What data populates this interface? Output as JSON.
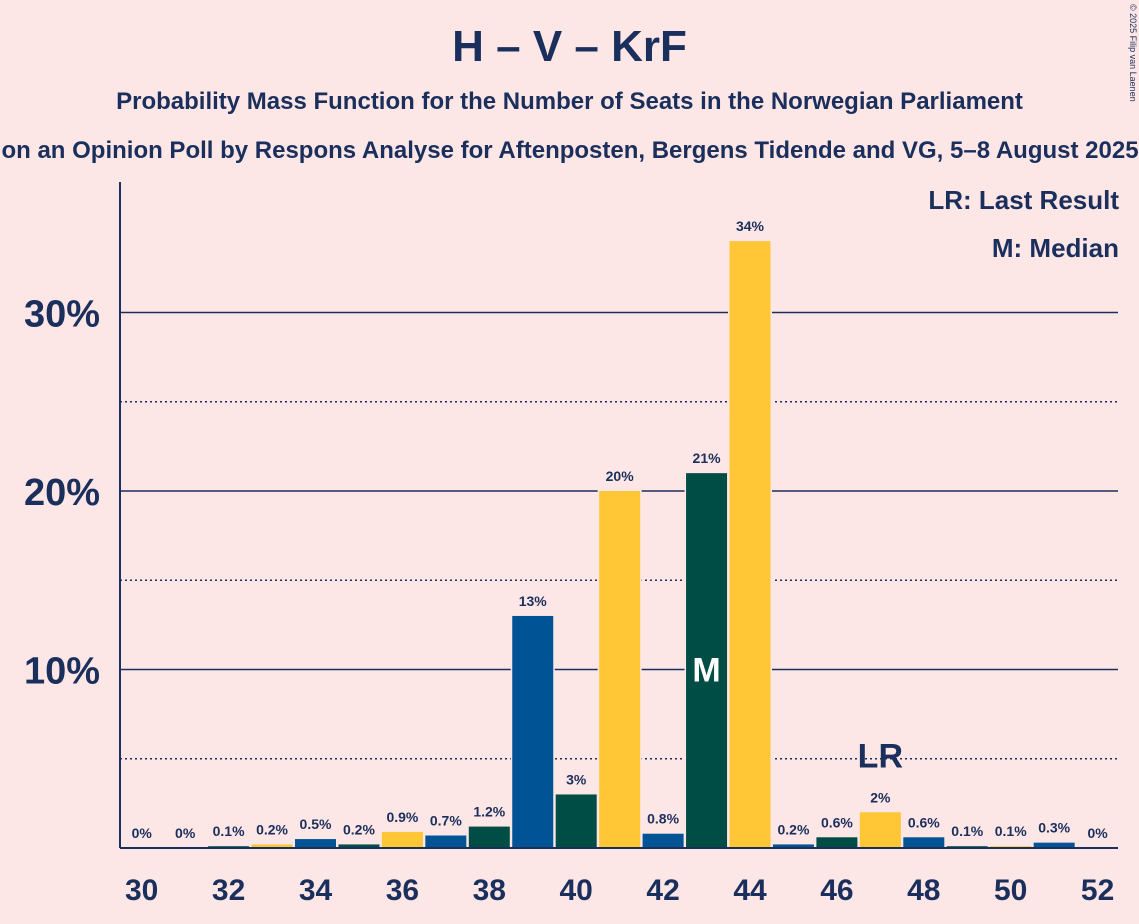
{
  "title": "H – V – KrF",
  "subtitle": "Probability Mass Function for the Number of Seats in the Norwegian Parliament",
  "subtitle2": "on an Opinion Poll by Respons Analyse for Aftenposten, Bergens Tidende and VG, 5–8 August 2025",
  "copyright": "© 2025 Filip van Laenen",
  "legend": {
    "last_result": "LR: Last Result",
    "median": "M: Median"
  },
  "colors": {
    "background": "#fde6e6",
    "text": "#1b2f5c",
    "H": "#005496",
    "KrF": "#004d45",
    "V": "#ffc636"
  },
  "chart_data": {
    "type": "bar",
    "x": [
      30,
      31,
      32,
      33,
      34,
      35,
      36,
      37,
      38,
      39,
      40,
      41,
      42,
      43,
      44,
      45,
      46,
      47,
      48,
      49,
      50,
      51,
      52
    ],
    "values": [
      0,
      0,
      0.1,
      0.2,
      0.5,
      0.2,
      0.9,
      0.7,
      1.2,
      13,
      3,
      20,
      0.8,
      21,
      34,
      0.2,
      0.6,
      2,
      0.6,
      0.1,
      0.1,
      0.3,
      0
    ],
    "labels": [
      "0%",
      "0%",
      "0.1%",
      "0.2%",
      "0.5%",
      "0.2%",
      "0.9%",
      "0.7%",
      "1.2%",
      "13%",
      "3%",
      "20%",
      "0.8%",
      "21%",
      "34%",
      "0.2%",
      "0.6%",
      "2%",
      "0.6%",
      "0.1%",
      "0.1%",
      "0.3%",
      "0%"
    ],
    "bar_colors": [
      "#ffc636",
      "#005496",
      "#004d45",
      "#ffc636",
      "#005496",
      "#004d45",
      "#ffc636",
      "#005496",
      "#004d45",
      "#005496",
      "#004d45",
      "#ffc636",
      "#005496",
      "#004d45",
      "#ffc636",
      "#005496",
      "#004d45",
      "#ffc636",
      "#005496",
      "#004d45",
      "#ffc636",
      "#005496",
      "#004d45"
    ],
    "x_tick_labels": [
      "30",
      "32",
      "34",
      "36",
      "38",
      "40",
      "42",
      "44",
      "46",
      "48",
      "50",
      "52"
    ],
    "y_tick_labels": [
      "10%",
      "20%",
      "30%"
    ],
    "y_ticks": [
      10,
      20,
      30
    ],
    "y_minor_ticks": [
      5,
      15,
      25
    ],
    "ylim": [
      0,
      37
    ],
    "median": {
      "x": 43,
      "label": "M"
    },
    "last_result": {
      "x": 47,
      "label": "LR"
    },
    "grid": true,
    "legend_position": "top-right"
  }
}
